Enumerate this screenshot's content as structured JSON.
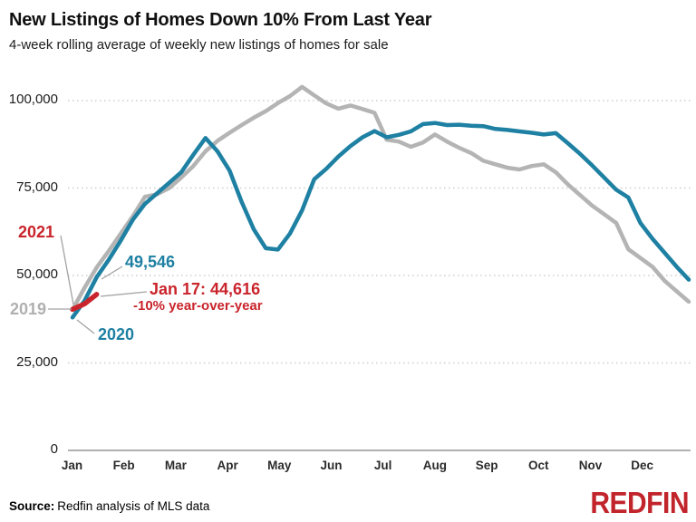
{
  "header": {
    "title": "New Listings of Homes Down 10% From Last Year",
    "subtitle": "4-week rolling average of weekly new listings of homes for sale"
  },
  "annotations": {
    "y2021_label": "2021",
    "y2019_label": "2019",
    "y2020_label": "2020",
    "y2020_value": "49,546",
    "latest_label": "Jan 17: 44,616",
    "yoy_label": "-10% year-over-year"
  },
  "footer": {
    "source_label": "Source:",
    "source_text": "Redfin analysis of MLS data",
    "logo": "REDFIN"
  },
  "chart_data": {
    "type": "line",
    "title": "New Listings of Homes Down 10% From Last Year",
    "subtitle": "4-week rolling average of weekly new listings of homes for sale",
    "xlabel": "",
    "ylabel": "",
    "grid": "horizontal-dotted",
    "x_axis": {
      "labels": [
        "Jan",
        "Feb",
        "Mar",
        "Apr",
        "May",
        "Jun",
        "Jul",
        "Aug",
        "Sep",
        "Oct",
        "Nov",
        "Dec"
      ]
    },
    "y_axis": {
      "tick_values": [
        0,
        25000,
        50000,
        75000,
        100000
      ],
      "tick_labels": [
        "0",
        "25,000",
        "50,000",
        "75,000",
        "100,000"
      ],
      "range": [
        0,
        107000
      ]
    },
    "series": [
      {
        "name": "2019",
        "color": "#b4b4b4",
        "start_week": 1,
        "values": [
          40200,
          46500,
          52300,
          57000,
          62000,
          67000,
          72500,
          73200,
          75000,
          78000,
          81300,
          85500,
          88500,
          90800,
          93000,
          95100,
          97000,
          99300,
          101300,
          103900,
          101500,
          99200,
          97700,
          98600,
          97600,
          96500,
          88800,
          88300,
          86800,
          88000,
          90300,
          88300,
          86500,
          85000,
          82800,
          81800,
          80800,
          80300,
          81300,
          81800,
          79500,
          76000,
          73000,
          70000,
          67500,
          65000,
          57500,
          55000,
          52500,
          48500,
          45500,
          42500
        ]
      },
      {
        "name": "2020",
        "color": "#1e80a2",
        "start_week": 1,
        "values": [
          38000,
          42800,
          49546,
          54500,
          60000,
          66000,
          70500,
          73500,
          76500,
          79500,
          84500,
          89300,
          85500,
          80000,
          71000,
          63200,
          57800,
          57400,
          62000,
          68600,
          77500,
          80500,
          84000,
          87000,
          89500,
          91300,
          89500,
          90200,
          91200,
          93300,
          93600,
          93000,
          93100,
          92800,
          92700,
          91900,
          91600,
          91200,
          90800,
          90300,
          90700,
          87800,
          84800,
          81500,
          78000,
          74500,
          72300,
          65000,
          60500,
          56500,
          52500,
          48800
        ]
      },
      {
        "name": "2021",
        "color": "#c9242b",
        "start_week": 1,
        "values": [
          40300,
          41900,
          44616
        ]
      }
    ],
    "callouts": {
      "latest_point": {
        "series": "2021",
        "date": "Jan 17",
        "value": 44616,
        "yoy_change": "-10% year-over-year"
      },
      "comparison_point": {
        "series": "2020",
        "value": 49546
      }
    }
  }
}
